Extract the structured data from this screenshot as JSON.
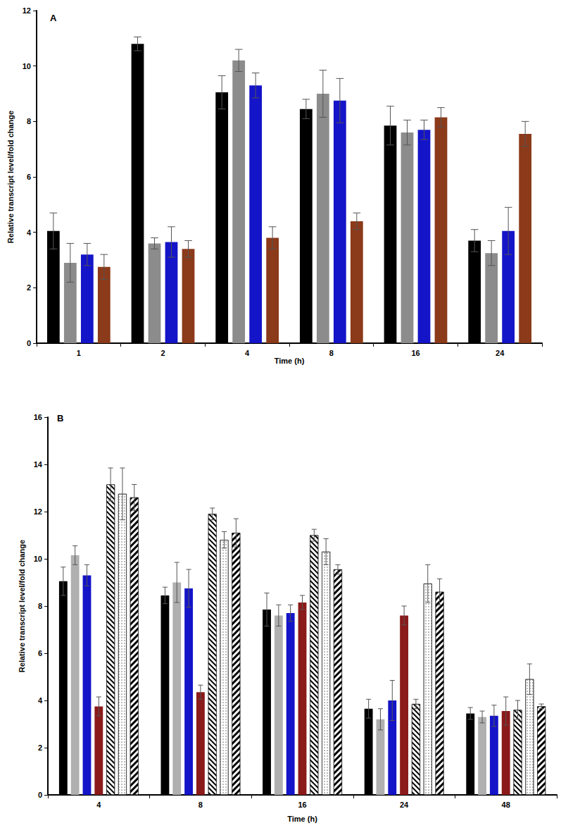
{
  "chart_data": [
    {
      "type": "bar",
      "title": "A",
      "x_label": "Time (h)",
      "y_label": "Relative transcript level/fold change",
      "categories": [
        "1",
        "2",
        "4",
        "8",
        "16",
        "24"
      ],
      "ylim": [
        0,
        12
      ],
      "yticks": [
        0,
        2,
        4,
        6,
        8,
        10,
        12
      ],
      "grid": false,
      "series": [
        {
          "color": "#000000",
          "values": [
            4.05,
            10.8,
            9.05,
            8.45,
            7.85,
            3.7
          ],
          "errors": [
            0.65,
            0.25,
            0.6,
            0.35,
            0.7,
            0.4
          ]
        },
        {
          "color": "#8c8c8c",
          "values": [
            2.9,
            3.6,
            10.2,
            9.0,
            7.6,
            3.25
          ],
          "errors": [
            0.7,
            0.2,
            0.4,
            0.85,
            0.45,
            0.45
          ]
        },
        {
          "color": "#1414c8",
          "values": [
            3.2,
            3.65,
            9.3,
            8.75,
            7.7,
            4.05
          ],
          "errors": [
            0.4,
            0.55,
            0.45,
            0.8,
            0.35,
            0.85
          ]
        },
        {
          "color": "#8b3a1a",
          "values": [
            2.75,
            3.4,
            3.8,
            4.4,
            8.15,
            7.55
          ],
          "errors": [
            0.45,
            0.3,
            0.4,
            0.3,
            0.35,
            0.45
          ]
        }
      ]
    },
    {
      "type": "bar",
      "title": "B",
      "x_label": "Time (h)",
      "y_label": "Relative transcript level/fold change",
      "categories": [
        "4",
        "8",
        "16",
        "24",
        "48"
      ],
      "ylim": [
        0,
        16
      ],
      "yticks": [
        0,
        2,
        4,
        6,
        8,
        10,
        12,
        14,
        16
      ],
      "grid": false,
      "series": [
        {
          "color": "#000000",
          "values": [
            9.05,
            8.45,
            7.85,
            3.65,
            3.45
          ],
          "errors": [
            0.6,
            0.35,
            0.7,
            0.4,
            0.25
          ]
        },
        {
          "color": "#b0b0b0",
          "values": [
            10.15,
            9.0,
            7.6,
            3.2,
            3.3
          ],
          "errors": [
            0.4,
            0.85,
            0.45,
            0.45,
            0.25
          ]
        },
        {
          "color": "#1414c8",
          "values": [
            9.3,
            8.75,
            7.7,
            4.0,
            3.35
          ],
          "errors": [
            0.45,
            0.8,
            0.35,
            0.85,
            0.45
          ]
        },
        {
          "color": "#8b1a1a",
          "values": [
            3.75,
            4.35,
            8.15,
            7.6,
            3.55
          ],
          "errors": [
            0.4,
            0.3,
            0.3,
            0.4,
            0.6
          ]
        },
        {
          "color": "#000000",
          "line_style": "backhatch",
          "values": [
            13.15,
            11.9,
            11.0,
            3.85,
            3.6
          ],
          "errors": [
            0.7,
            0.25,
            0.25,
            0.2,
            0.4
          ]
        },
        {
          "color": "#555555",
          "line_style": "dots",
          "values": [
            12.75,
            10.8,
            10.3,
            8.95,
            4.9
          ],
          "errors": [
            1.1,
            0.35,
            0.55,
            0.8,
            0.65
          ]
        },
        {
          "color": "#000000",
          "line_style": "hatch",
          "values": [
            12.6,
            11.1,
            9.55,
            8.6,
            3.75
          ],
          "errors": [
            0.55,
            0.6,
            0.2,
            0.55,
            0.1
          ]
        }
      ]
    }
  ]
}
